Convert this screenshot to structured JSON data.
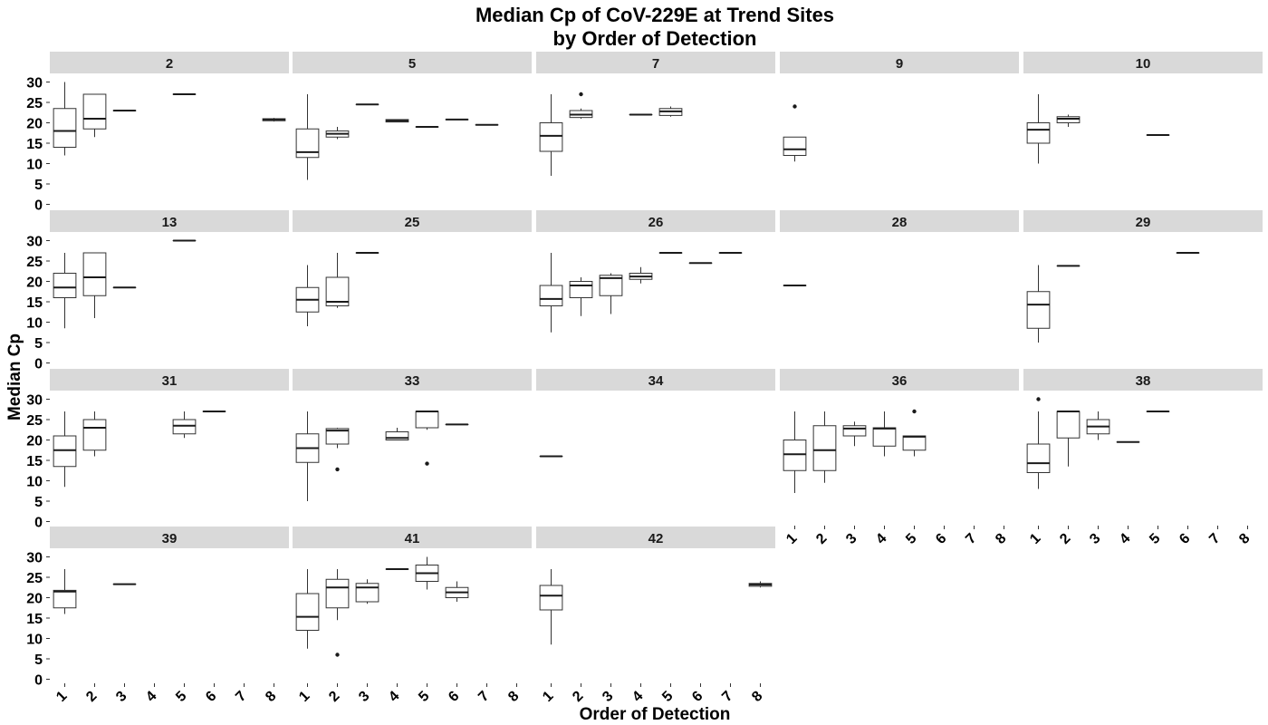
{
  "chart_data": {
    "type": "boxplot",
    "title_line1": "Median Cp of CoV-229E at Trend Sites",
    "title_line2": "by Order of Detection",
    "xlabel": "Order of Detection",
    "ylabel": "Median Cp",
    "x_categories": [
      "1",
      "2",
      "3",
      "4",
      "5",
      "6",
      "7",
      "8"
    ],
    "y_ticks": [
      0,
      5,
      10,
      15,
      20,
      25,
      30
    ],
    "ylim": [
      -1,
      31
    ],
    "layout": "facet_wrap 5 columns x 4 rows",
    "facets": [
      {
        "label": "2",
        "boxes": [
          {
            "x": 1,
            "lo": 12,
            "q1": 14,
            "med": 18,
            "q3": 23.5,
            "hi": 30,
            "out": []
          },
          {
            "x": 2,
            "lo": 16.5,
            "q1": 18.5,
            "med": 21,
            "q3": 27,
            "hi": 27,
            "out": []
          },
          {
            "x": 3,
            "lo": 23,
            "q1": 23,
            "med": 23,
            "q3": 23,
            "hi": 23,
            "out": []
          },
          {
            "x": 5,
            "lo": 27,
            "q1": 27,
            "med": 27,
            "q3": 27,
            "hi": 27,
            "out": []
          },
          {
            "x": 8,
            "lo": 20.3,
            "q1": 20.5,
            "med": 20.8,
            "q3": 21,
            "hi": 21.2,
            "out": []
          }
        ]
      },
      {
        "label": "5",
        "boxes": [
          {
            "x": 1,
            "lo": 6,
            "q1": 11.5,
            "med": 12.8,
            "q3": 18.5,
            "hi": 27,
            "out": []
          },
          {
            "x": 2,
            "lo": 16,
            "q1": 16.5,
            "med": 17.3,
            "q3": 18,
            "hi": 19,
            "out": []
          },
          {
            "x": 3,
            "lo": 24.5,
            "q1": 24.5,
            "med": 24.5,
            "q3": 24.5,
            "hi": 24.5,
            "out": []
          },
          {
            "x": 4,
            "lo": 20.2,
            "q1": 20.2,
            "med": 20.5,
            "q3": 20.8,
            "hi": 20.8,
            "out": []
          },
          {
            "x": 5,
            "lo": 19,
            "q1": 19,
            "med": 19,
            "q3": 19,
            "hi": 19,
            "out": []
          },
          {
            "x": 6,
            "lo": 20.8,
            "q1": 20.8,
            "med": 20.8,
            "q3": 20.8,
            "hi": 20.8,
            "out": []
          },
          {
            "x": 7,
            "lo": 19.5,
            "q1": 19.5,
            "med": 19.5,
            "q3": 19.5,
            "hi": 19.5,
            "out": []
          }
        ]
      },
      {
        "label": "7",
        "boxes": [
          {
            "x": 1,
            "lo": 7,
            "q1": 13,
            "med": 16.8,
            "q3": 20,
            "hi": 27,
            "out": []
          },
          {
            "x": 2,
            "lo": 21,
            "q1": 21.3,
            "med": 22,
            "q3": 23,
            "hi": 23.5,
            "out": [
              27
            ]
          },
          {
            "x": 4,
            "lo": 22,
            "q1": 22,
            "med": 22,
            "q3": 22,
            "hi": 22,
            "out": []
          },
          {
            "x": 5,
            "lo": 21.5,
            "q1": 21.8,
            "med": 22.8,
            "q3": 23.5,
            "hi": 24,
            "out": []
          }
        ]
      },
      {
        "label": "9",
        "boxes": [
          {
            "x": 1,
            "lo": 10.5,
            "q1": 12,
            "med": 13.5,
            "q3": 16.5,
            "hi": 16.5,
            "out": [
              24
            ]
          }
        ]
      },
      {
        "label": "10",
        "boxes": [
          {
            "x": 1,
            "lo": 10,
            "q1": 15,
            "med": 18.3,
            "q3": 20,
            "hi": 27,
            "out": []
          },
          {
            "x": 2,
            "lo": 19,
            "q1": 20,
            "med": 21,
            "q3": 21.5,
            "hi": 22,
            "out": []
          },
          {
            "x": 5,
            "lo": 17,
            "q1": 17,
            "med": 17,
            "q3": 17,
            "hi": 17,
            "out": []
          }
        ]
      },
      {
        "label": "13",
        "boxes": [
          {
            "x": 1,
            "lo": 8.5,
            "q1": 16,
            "med": 18.5,
            "q3": 22,
            "hi": 27,
            "out": []
          },
          {
            "x": 2,
            "lo": 11,
            "q1": 16.5,
            "med": 21,
            "q3": 27,
            "hi": 27,
            "out": []
          },
          {
            "x": 3,
            "lo": 18.5,
            "q1": 18.5,
            "med": 18.5,
            "q3": 18.5,
            "hi": 18.5,
            "out": []
          },
          {
            "x": 5,
            "lo": 30,
            "q1": 30,
            "med": 30,
            "q3": 30,
            "hi": 30,
            "out": []
          }
        ]
      },
      {
        "label": "25",
        "boxes": [
          {
            "x": 1,
            "lo": 9,
            "q1": 12.5,
            "med": 15.5,
            "q3": 18.5,
            "hi": 24,
            "out": []
          },
          {
            "x": 2,
            "lo": 13.5,
            "q1": 14,
            "med": 15,
            "q3": 21,
            "hi": 27,
            "out": []
          },
          {
            "x": 3,
            "lo": 27,
            "q1": 27,
            "med": 27,
            "q3": 27,
            "hi": 27,
            "out": []
          }
        ]
      },
      {
        "label": "26",
        "boxes": [
          {
            "x": 1,
            "lo": 7.5,
            "q1": 14,
            "med": 15.7,
            "q3": 19,
            "hi": 27,
            "out": []
          },
          {
            "x": 2,
            "lo": 11.5,
            "q1": 16,
            "med": 19,
            "q3": 20,
            "hi": 21,
            "out": []
          },
          {
            "x": 3,
            "lo": 12,
            "q1": 16.5,
            "med": 20.8,
            "q3": 21.5,
            "hi": 22,
            "out": []
          },
          {
            "x": 4,
            "lo": 19.5,
            "q1": 20.5,
            "med": 21.2,
            "q3": 22,
            "hi": 23.5,
            "out": []
          },
          {
            "x": 5,
            "lo": 27,
            "q1": 27,
            "med": 27,
            "q3": 27,
            "hi": 27,
            "out": []
          },
          {
            "x": 6,
            "lo": 24.5,
            "q1": 24.5,
            "med": 24.5,
            "q3": 24.5,
            "hi": 24.5,
            "out": []
          },
          {
            "x": 7,
            "lo": 27,
            "q1": 27,
            "med": 27,
            "q3": 27,
            "hi": 27,
            "out": []
          }
        ]
      },
      {
        "label": "28",
        "boxes": [
          {
            "x": 1,
            "lo": 19,
            "q1": 19,
            "med": 19,
            "q3": 19,
            "hi": 19,
            "out": []
          }
        ]
      },
      {
        "label": "29",
        "boxes": [
          {
            "x": 1,
            "lo": 5,
            "q1": 8.5,
            "med": 14.3,
            "q3": 17.5,
            "hi": 24,
            "out": []
          },
          {
            "x": 2,
            "lo": 23.8,
            "q1": 23.8,
            "med": 23.8,
            "q3": 23.8,
            "hi": 23.8,
            "out": []
          },
          {
            "x": 6,
            "lo": 27,
            "q1": 27,
            "med": 27,
            "q3": 27,
            "hi": 27,
            "out": []
          }
        ]
      },
      {
        "label": "31",
        "boxes": [
          {
            "x": 1,
            "lo": 8.5,
            "q1": 13.5,
            "med": 17.5,
            "q3": 21,
            "hi": 27,
            "out": []
          },
          {
            "x": 2,
            "lo": 16,
            "q1": 17.5,
            "med": 23,
            "q3": 25,
            "hi": 27,
            "out": []
          },
          {
            "x": 5,
            "lo": 20.5,
            "q1": 21.5,
            "med": 23.5,
            "q3": 25,
            "hi": 27,
            "out": []
          },
          {
            "x": 6,
            "lo": 27,
            "q1": 27,
            "med": 27,
            "q3": 27,
            "hi": 27,
            "out": []
          }
        ]
      },
      {
        "label": "33",
        "boxes": [
          {
            "x": 1,
            "lo": 5,
            "q1": 14.5,
            "med": 18,
            "q3": 21.5,
            "hi": 27,
            "out": []
          },
          {
            "x": 2,
            "lo": 18,
            "q1": 19,
            "med": 22.3,
            "q3": 22.8,
            "hi": 23,
            "out": [
              12.8
            ]
          },
          {
            "x": 4,
            "lo": 20,
            "q1": 20,
            "med": 20.5,
            "q3": 22,
            "hi": 23,
            "out": []
          },
          {
            "x": 5,
            "lo": 22.5,
            "q1": 23,
            "med": 27,
            "q3": 27,
            "hi": 27,
            "out": [
              14.2
            ]
          },
          {
            "x": 6,
            "lo": 23.8,
            "q1": 23.8,
            "med": 23.8,
            "q3": 23.8,
            "hi": 23.8,
            "out": []
          }
        ]
      },
      {
        "label": "34",
        "boxes": [
          {
            "x": 1,
            "lo": 16,
            "q1": 16,
            "med": 16,
            "q3": 16,
            "hi": 16,
            "out": []
          }
        ]
      },
      {
        "label": "36",
        "boxes": [
          {
            "x": 1,
            "lo": 7,
            "q1": 12.5,
            "med": 16.5,
            "q3": 20,
            "hi": 27,
            "out": []
          },
          {
            "x": 2,
            "lo": 9.5,
            "q1": 12.5,
            "med": 17.5,
            "q3": 23.5,
            "hi": 27,
            "out": []
          },
          {
            "x": 3,
            "lo": 18.5,
            "q1": 21,
            "med": 22.8,
            "q3": 23.5,
            "hi": 24.5,
            "out": []
          },
          {
            "x": 4,
            "lo": 16,
            "q1": 18.5,
            "med": 22.8,
            "q3": 23,
            "hi": 27,
            "out": []
          },
          {
            "x": 5,
            "lo": 16,
            "q1": 17.5,
            "med": 20.8,
            "q3": 21,
            "hi": 21,
            "out": [
              27
            ]
          }
        ]
      },
      {
        "label": "38",
        "boxes": [
          {
            "x": 1,
            "lo": 8,
            "q1": 12,
            "med": 14.3,
            "q3": 19,
            "hi": 27,
            "out": [
              30
            ]
          },
          {
            "x": 2,
            "lo": 13.5,
            "q1": 20.5,
            "med": 27,
            "q3": 27,
            "hi": 27,
            "out": []
          },
          {
            "x": 3,
            "lo": 20,
            "q1": 21.5,
            "med": 23.3,
            "q3": 25,
            "hi": 27,
            "out": []
          },
          {
            "x": 4,
            "lo": 19.5,
            "q1": 19.5,
            "med": 19.5,
            "q3": 19.5,
            "hi": 19.5,
            "out": []
          },
          {
            "x": 5,
            "lo": 27,
            "q1": 27,
            "med": 27,
            "q3": 27,
            "hi": 27,
            "out": []
          }
        ]
      },
      {
        "label": "39",
        "boxes": [
          {
            "x": 1,
            "lo": 16,
            "q1": 17.5,
            "med": 21.5,
            "q3": 21.8,
            "hi": 27,
            "out": []
          },
          {
            "x": 3,
            "lo": 23.3,
            "q1": 23.3,
            "med": 23.3,
            "q3": 23.3,
            "hi": 23.3,
            "out": []
          }
        ]
      },
      {
        "label": "41",
        "boxes": [
          {
            "x": 1,
            "lo": 7.5,
            "q1": 12,
            "med": 15.3,
            "q3": 21,
            "hi": 27,
            "out": []
          },
          {
            "x": 2,
            "lo": 14.5,
            "q1": 17.5,
            "med": 22.5,
            "q3": 24.5,
            "hi": 27,
            "out": [
              6
            ]
          },
          {
            "x": 3,
            "lo": 18.5,
            "q1": 19,
            "med": 22.5,
            "q3": 23.5,
            "hi": 24.5,
            "out": []
          },
          {
            "x": 4,
            "lo": 27,
            "q1": 27,
            "med": 27,
            "q3": 27,
            "hi": 27,
            "out": []
          },
          {
            "x": 5,
            "lo": 22,
            "q1": 24,
            "med": 26,
            "q3": 28,
            "hi": 30,
            "out": []
          },
          {
            "x": 6,
            "lo": 19,
            "q1": 20,
            "med": 21.3,
            "q3": 22.5,
            "hi": 24,
            "out": []
          }
        ]
      },
      {
        "label": "42",
        "boxes": [
          {
            "x": 1,
            "lo": 8.5,
            "q1": 17,
            "med": 20.5,
            "q3": 23,
            "hi": 27,
            "out": []
          },
          {
            "x": 8,
            "lo": 22.5,
            "q1": 22.8,
            "med": 23.2,
            "q3": 23.5,
            "hi": 24,
            "out": []
          }
        ]
      }
    ]
  }
}
